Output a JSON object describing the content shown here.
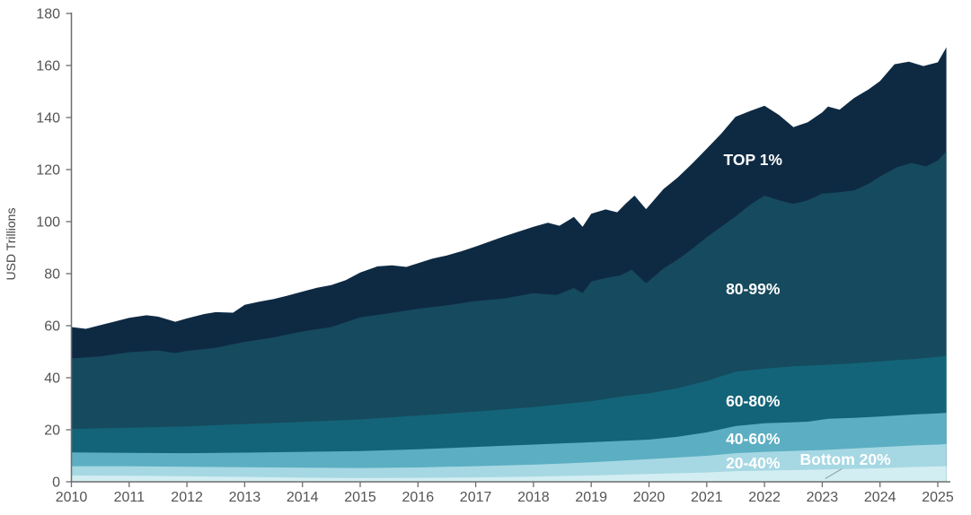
{
  "figure": {
    "background": "#ffffff",
    "axis_line_color": "#6e6e6e",
    "tick_text_color": "#545454"
  },
  "axes": {
    "y_title": "USD Trillions",
    "y_ticks": [
      0,
      20,
      40,
      60,
      80,
      100,
      120,
      140,
      160,
      180
    ],
    "x_ticks": [
      2010,
      2011,
      2012,
      2013,
      2014,
      2015,
      2016,
      2017,
      2018,
      2019,
      2020,
      2021,
      2022,
      2023,
      2024,
      2025
    ]
  },
  "chart_data": {
    "type": "area",
    "stacked": true,
    "title": "",
    "xlabel": "",
    "ylabel": "USD Trillions",
    "x_range": [
      2010,
      2025.15
    ],
    "ylim": [
      0,
      180
    ],
    "grid": false,
    "legend_position": "in-plot annotations",
    "note": "Stacked area of wealth by percentile group, USD trillions. Each series lists cumulative stack-top values (band value = its cum_top minus the cum_top of the series below it). Bands top to bottom: TOP 1%, 80-99%, 60-80%, 40-60%, 20-40%, Bottom 20%.",
    "series": [
      {
        "label": "TOP 1%",
        "color": "#0E2A43",
        "x": [
          2010.0,
          2010.25,
          2010.5,
          2010.75,
          2011.0,
          2011.3,
          2011.5,
          2011.8,
          2012.0,
          2012.3,
          2012.5,
          2012.8,
          2013.0,
          2013.25,
          2013.5,
          2013.75,
          2014.0,
          2014.25,
          2014.5,
          2014.75,
          2015.0,
          2015.3,
          2015.55,
          2015.8,
          2016.0,
          2016.25,
          2016.5,
          2016.75,
          2017.0,
          2017.25,
          2017.5,
          2017.75,
          2018.0,
          2018.25,
          2018.45,
          2018.7,
          2018.85,
          2019.0,
          2019.25,
          2019.45,
          2019.6,
          2019.75,
          2019.95,
          2020.25,
          2020.5,
          2020.75,
          2021.0,
          2021.25,
          2021.5,
          2021.75,
          2022.0,
          2022.25,
          2022.5,
          2022.75,
          2023.0,
          2023.1,
          2023.3,
          2023.55,
          2023.8,
          2024.0,
          2024.25,
          2024.5,
          2024.75,
          2025.0,
          2025.15
        ],
        "cum_top": [
          59.5,
          58.8,
          60.2,
          61.6,
          63.0,
          64.0,
          63.5,
          61.5,
          62.8,
          64.5,
          65.2,
          65.0,
          68.0,
          69.2,
          70.2,
          71.6,
          73.1,
          74.6,
          75.6,
          77.5,
          80.4,
          82.8,
          83.2,
          82.6,
          84.0,
          85.8,
          87.0,
          88.6,
          90.4,
          92.4,
          94.4,
          96.2,
          98.0,
          99.6,
          98.4,
          101.8,
          98.0,
          103.0,
          104.7,
          103.6,
          107.0,
          110.0,
          104.8,
          112.5,
          117.0,
          122.3,
          128.0,
          133.8,
          140.3,
          142.5,
          144.5,
          141.0,
          136.3,
          138.2,
          142.0,
          144.2,
          143.0,
          147.5,
          150.8,
          154.0,
          160.5,
          161.5,
          159.8,
          161.2,
          167.0
        ]
      },
      {
        "label": "80-99%",
        "color": "#164A5E",
        "x": [
          2010.0,
          2010.5,
          2011.0,
          2011.5,
          2011.8,
          2012.0,
          2012.5,
          2013.0,
          2013.5,
          2014.0,
          2014.5,
          2015.0,
          2015.5,
          2016.0,
          2016.5,
          2017.0,
          2017.5,
          2018.0,
          2018.4,
          2018.7,
          2018.85,
          2019.0,
          2019.25,
          2019.5,
          2019.7,
          2019.95,
          2020.25,
          2020.5,
          2020.75,
          2021.0,
          2021.25,
          2021.5,
          2021.75,
          2022.0,
          2022.25,
          2022.5,
          2022.75,
          2023.0,
          2023.25,
          2023.55,
          2023.8,
          2024.0,
          2024.3,
          2024.55,
          2024.8,
          2025.0,
          2025.15
        ],
        "cum_top": [
          47.4,
          48.2,
          49.8,
          50.5,
          49.5,
          50.3,
          51.5,
          53.8,
          55.5,
          57.8,
          59.5,
          63.2,
          64.8,
          66.5,
          67.8,
          69.5,
          70.5,
          72.5,
          71.8,
          74.5,
          72.5,
          77.0,
          78.3,
          79.3,
          81.5,
          76.3,
          82.0,
          85.5,
          89.5,
          94.0,
          98.0,
          102.0,
          106.5,
          110.0,
          108.2,
          106.8,
          108.2,
          110.8,
          111.2,
          112.0,
          114.5,
          117.3,
          121.0,
          122.5,
          121.2,
          123.5,
          127.0
        ]
      },
      {
        "label": "60-80%",
        "color": "#136478",
        "x": [
          2010,
          2011,
          2012,
          2013,
          2014,
          2015,
          2016,
          2017,
          2018,
          2019,
          2019.65,
          2020.0,
          2020.5,
          2021.0,
          2021.5,
          2022.0,
          2022.5,
          2023.0,
          2023.5,
          2024.0,
          2024.3,
          2024.6,
          2025.0,
          2025.15
        ],
        "cum_top": [
          20.3,
          20.8,
          21.3,
          22.2,
          23.0,
          24.0,
          25.5,
          27.0,
          28.7,
          31.0,
          33.2,
          34.0,
          36.0,
          38.8,
          42.3,
          43.5,
          44.4,
          44.9,
          45.5,
          46.3,
          46.8,
          47.2,
          48.0,
          48.5
        ]
      },
      {
        "label": "40-60%",
        "color": "#5CAEC2",
        "x": [
          2010,
          2011,
          2012,
          2013,
          2014,
          2015,
          2016,
          2017,
          2018,
          2019,
          2020,
          2020.5,
          2021,
          2021.5,
          2022,
          2022.75,
          2023.1,
          2023.55,
          2024,
          2024.5,
          2025,
          2025.15
        ],
        "cum_top": [
          11.3,
          11.1,
          11.0,
          11.2,
          11.5,
          11.8,
          12.5,
          13.4,
          14.3,
          15.2,
          16.2,
          17.3,
          19.0,
          21.4,
          22.5,
          23.1,
          24.2,
          24.6,
          25.1,
          25.8,
          26.3,
          26.5
        ]
      },
      {
        "label": "20-40%",
        "color": "#A6D8E3",
        "x": [
          2010,
          2011,
          2012,
          2013,
          2014,
          2015,
          2016,
          2017,
          2018,
          2019,
          2020,
          2021,
          2021.5,
          2022,
          2023,
          2024,
          2024.6,
          2025,
          2025.15
        ],
        "cum_top": [
          6.0,
          6.0,
          5.8,
          5.6,
          5.4,
          5.3,
          5.5,
          6.0,
          6.6,
          7.5,
          8.7,
          10.0,
          11.0,
          11.5,
          12.2,
          13.3,
          14.0,
          14.3,
          14.5
        ]
      },
      {
        "label": "Bottom 20%",
        "color": "#D3EEF2",
        "x": [
          2010,
          2011,
          2012,
          2013,
          2014,
          2015,
          2016,
          2017,
          2018,
          2019,
          2020,
          2021,
          2021.5,
          2022,
          2023,
          2024,
          2024.6,
          2025,
          2025.15
        ],
        "cum_top": [
          2.4,
          2.3,
          2.1,
          1.9,
          1.6,
          1.4,
          1.5,
          1.7,
          2.0,
          2.4,
          3.0,
          3.6,
          4.1,
          4.3,
          4.7,
          5.2,
          5.7,
          5.9,
          6.0
        ]
      }
    ],
    "annotations": [
      {
        "text": "TOP 1%",
        "x": 2021.8,
        "y": 123.8,
        "color": "#ffffff"
      },
      {
        "text": "80-99%",
        "x": 2021.8,
        "y": 74.1,
        "color": "#ffffff"
      },
      {
        "text": "60-80%",
        "x": 2021.8,
        "y": 31.0,
        "color": "#ffffff"
      },
      {
        "text": "40-60%",
        "x": 2021.8,
        "y": 16.6,
        "color": "#ffffff"
      },
      {
        "text": "20-40%",
        "x": 2021.8,
        "y": 7.2,
        "color": "#ffffff"
      },
      {
        "text": "Bottom 20%",
        "x": 2023.4,
        "y": 8.6,
        "color": "#ffffff"
      }
    ],
    "leader_line": {
      "x1": 2023.34,
      "y1": 5.0,
      "x2": 2023.05,
      "y2": 1.2,
      "color": "#93a6ab"
    }
  }
}
